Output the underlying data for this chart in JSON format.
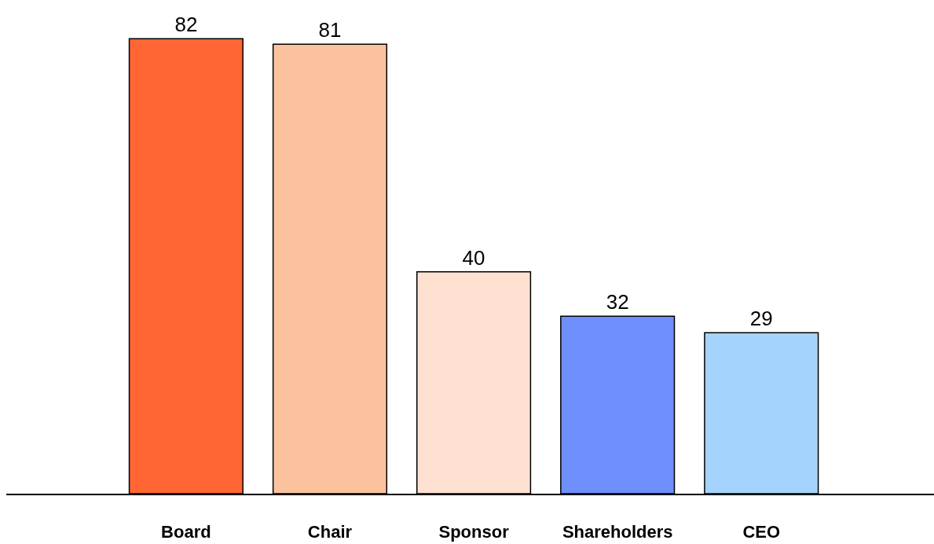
{
  "chart_data": {
    "type": "bar",
    "categories": [
      "Board",
      "Chair",
      "Sponsor",
      "Shareholders",
      "CEO"
    ],
    "values": [
      82,
      81,
      40,
      32,
      29
    ],
    "colors": [
      "#ff6633",
      "#fcc29e",
      "#ffe1d2",
      "#6f8ffd",
      "#a4d4fe"
    ],
    "data_labels": true,
    "legend": false
  }
}
